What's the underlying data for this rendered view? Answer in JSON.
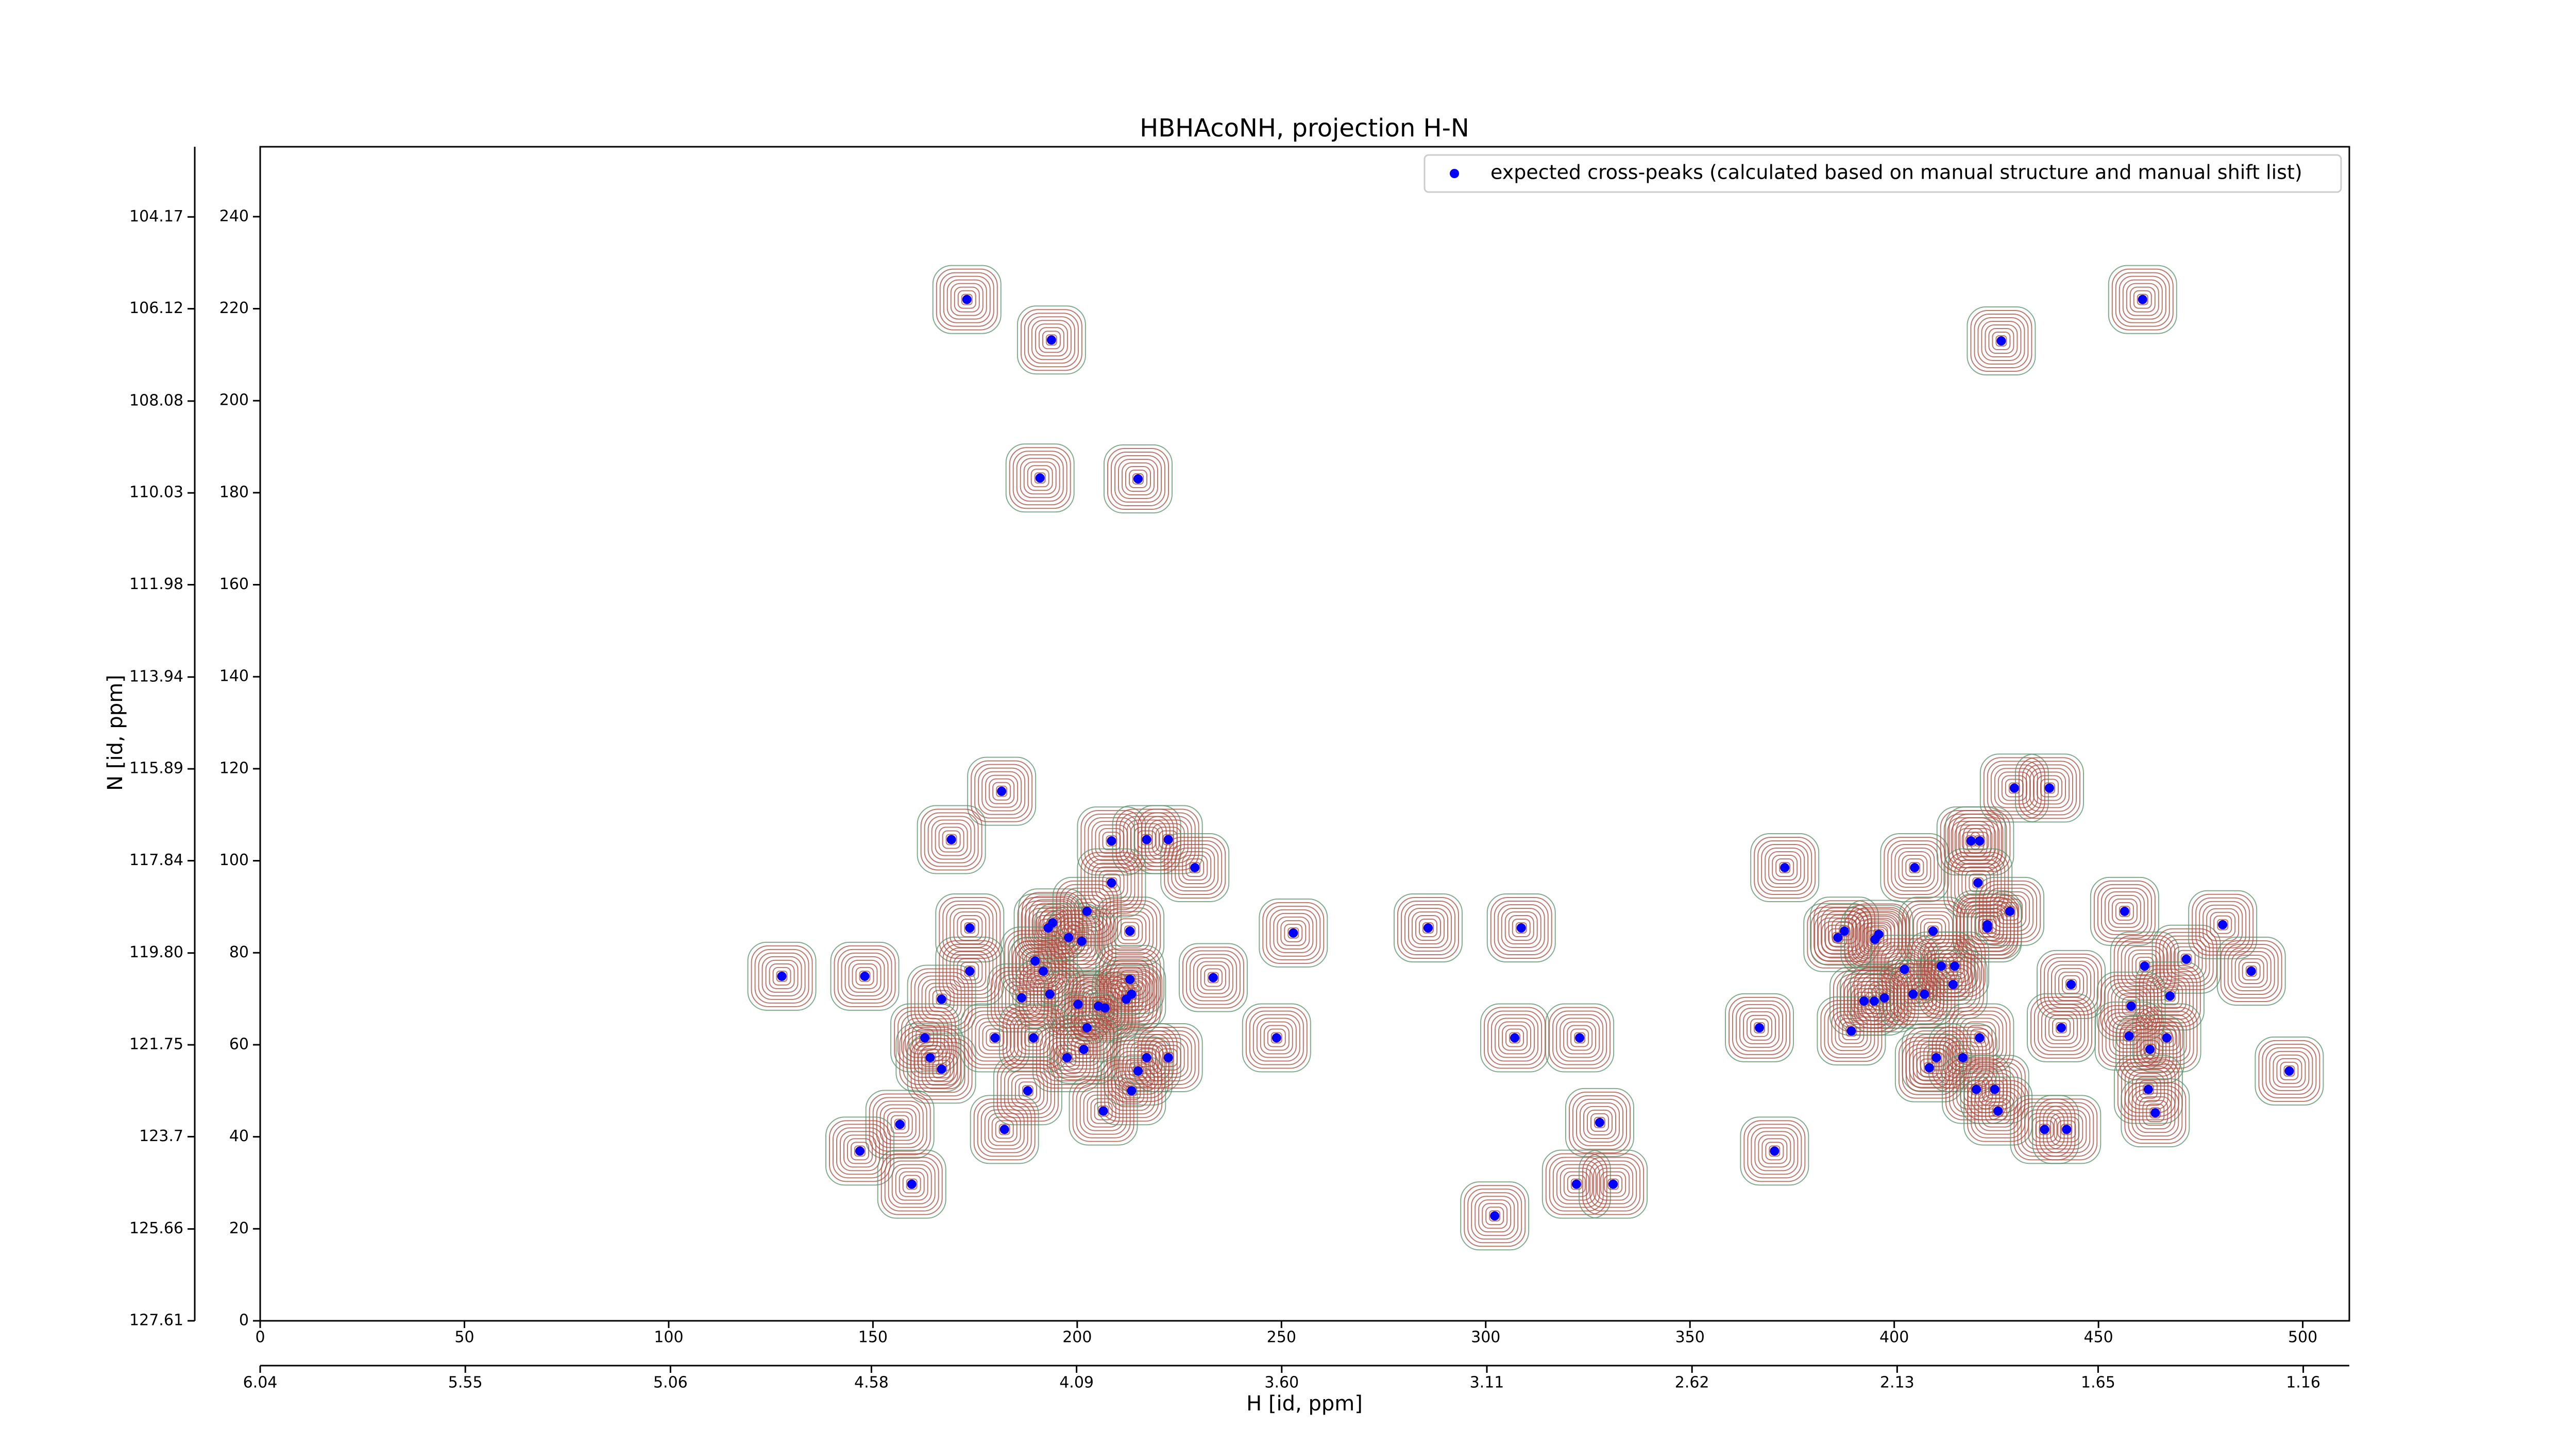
{
  "chart_data": {
    "type": "scatter",
    "title": "HBHAcoNH, projection H-N",
    "x_label": "H [id, ppm]",
    "y_label": "N [id, ppm]",
    "xlim": [
      0,
      511.4
    ],
    "ylim": [
      0,
      255.2
    ],
    "xticks": [
      0,
      50,
      100,
      150,
      200,
      250,
      300,
      350,
      400,
      450,
      500
    ],
    "yticks": [
      0,
      20,
      40,
      60,
      80,
      100,
      120,
      140,
      160,
      180,
      200,
      220,
      240
    ],
    "x2lim": [
      6.04,
      1.05
    ],
    "x2ticks": [
      6.04,
      5.55,
      5.06,
      4.58,
      4.09,
      {
        "value": 3.6,
        "label": "3.60"
      },
      3.11,
      2.62,
      2.13,
      1.65,
      1.16
    ],
    "y2lim": [
      127.61,
      102.68
    ],
    "y2ticks": [
      127.61,
      125.66,
      123.7,
      121.75,
      {
        "value": 119.8,
        "label": "119.80"
      },
      117.84,
      115.89,
      113.94,
      111.98,
      110.03,
      108.08,
      106.12,
      104.17
    ],
    "legend": "upper right",
    "series": [
      {
        "name": "expected cross-peaks (calculated based on manual structure and manual shift list)",
        "color": "#0000ff",
        "x": [
          173,
          193.7,
          190.9,
          214.9,
          426.2,
          460.8,
          181.5,
          169.2,
          208.4,
          217,
          222.3,
          228.8,
          173.7,
          192.9,
          194,
          202.4,
          197.9,
          201.1,
          212.9,
          208.4,
          189.7,
          191.7,
          173.7,
          166.8,
          186.4,
          193.3,
          200.2,
          206.8,
          205.2,
          212,
          213.3,
          212.9,
          202.4,
          201.6,
          197.5,
          162.7,
          164,
          166.8,
          179.9,
          189.3,
          214.9,
          217,
          222.3,
          213.3,
          206.4,
          187.9,
          182.2,
          156.6,
          146.8,
          159.5,
          127.7,
          148,
          233.3,
          252.9,
          248.8,
          285.9,
          308.7,
          307.1,
          323,
          327.9,
          322.2,
          331.2,
          302.2,
          370.7,
          367,
          373.2,
          386.2,
          387.8,
          395.3,
          396.2,
          405,
          418.8,
          420.9,
          420.5,
          422.8,
          422.8,
          409.5,
          428.3,
          411.5,
          414.8,
          414.4,
          402.5,
          392.6,
          395.1,
          397.6,
          404.6,
          407.4,
          389.5,
          420.9,
          410.3,
          416.8,
          408.6,
          420.1,
          424.6,
          425.4,
          443.3,
          440.9,
          436.8,
          442.2,
          429.4,
          438,
          456.4,
          461.3,
          471.5,
          480.4,
          487.4,
          467.5,
          458,
          457.5,
          466.7,
          462.6,
          462.2,
          463.9,
          496.7
        ],
        "values": [
          222,
          213.2,
          183.2,
          183,
          213,
          222,
          115.1,
          104.6,
          104.3,
          104.6,
          104.6,
          98.5,
          85.4,
          85.4,
          86.5,
          89,
          83.3,
          82.5,
          84.7,
          95.2,
          78.2,
          76,
          76,
          69.9,
          70.2,
          71,
          68.8,
          68,
          68.4,
          69.9,
          71,
          74.2,
          63.7,
          59,
          57.2,
          61.5,
          57.2,
          54.7,
          61.5,
          61.5,
          54.3,
          57.2,
          57.2,
          50,
          45.6,
          50,
          41.6,
          42.7,
          36.9,
          29.7,
          74.9,
          74.9,
          74.6,
          84.3,
          61.5,
          85.4,
          85.4,
          61.5,
          61.5,
          43.1,
          29.7,
          29.7,
          22.8,
          36.9,
          63.7,
          98.5,
          83.3,
          84.7,
          82.9,
          84,
          98.5,
          104.3,
          104.3,
          95.2,
          86.1,
          85.4,
          84.7,
          89,
          77.1,
          77.1,
          73.1,
          76.4,
          69.5,
          69.5,
          70.2,
          71,
          71,
          63,
          61.5,
          57.2,
          57.2,
          55,
          50.3,
          50.3,
          45.6,
          73.1,
          63.7,
          41.6,
          41.6,
          115.8,
          115.8,
          89,
          77.1,
          78.6,
          86.1,
          76,
          70.6,
          68.4,
          61.9,
          61.5,
          59,
          50.3,
          45.2,
          54.3
        ]
      }
    ]
  }
}
